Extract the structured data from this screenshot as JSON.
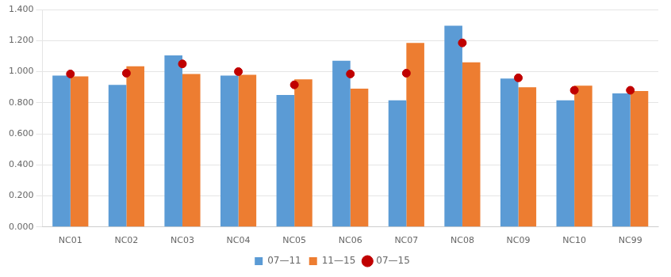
{
  "chart_data": {
    "type": "bar",
    "categories": [
      "NC01",
      "NC02",
      "NC03",
      "NC04",
      "NC05",
      "NC06",
      "NC07",
      "NC08",
      "NC09",
      "NC10",
      "NC99"
    ],
    "series": [
      {
        "name": "07—11",
        "type": "bar",
        "color": "#5B9BD5",
        "values": [
          0.975,
          0.915,
          1.105,
          0.975,
          0.85,
          1.07,
          0.815,
          1.295,
          0.955,
          0.815,
          0.86
        ]
      },
      {
        "name": "11—15",
        "type": "bar",
        "color": "#ED7D31",
        "values": [
          0.97,
          1.035,
          0.985,
          0.98,
          0.95,
          0.89,
          1.185,
          1.06,
          0.9,
          0.91,
          0.875
        ]
      },
      {
        "name": "07—15",
        "type": "scatter",
        "color": "#C00000",
        "marker": "circle",
        "values": [
          0.985,
          0.99,
          1.05,
          1.0,
          0.915,
          0.985,
          0.99,
          1.185,
          0.96,
          0.88,
          0.88
        ]
      }
    ],
    "ylim": [
      0.0,
      1.4
    ],
    "yticks": [
      {
        "value": 0.0,
        "label": "0.000"
      },
      {
        "value": 0.2,
        "label": "0.200"
      },
      {
        "value": 0.4,
        "label": "0.400"
      },
      {
        "value": 0.6,
        "label": "0.600"
      },
      {
        "value": 0.8,
        "label": "0.800"
      },
      {
        "value": 1.0,
        "label": "1.000"
      },
      {
        "value": 1.2,
        "label": "1.200"
      },
      {
        "value": 1.4,
        "label": "1.400"
      }
    ],
    "grid": true,
    "legend": "bottom"
  }
}
